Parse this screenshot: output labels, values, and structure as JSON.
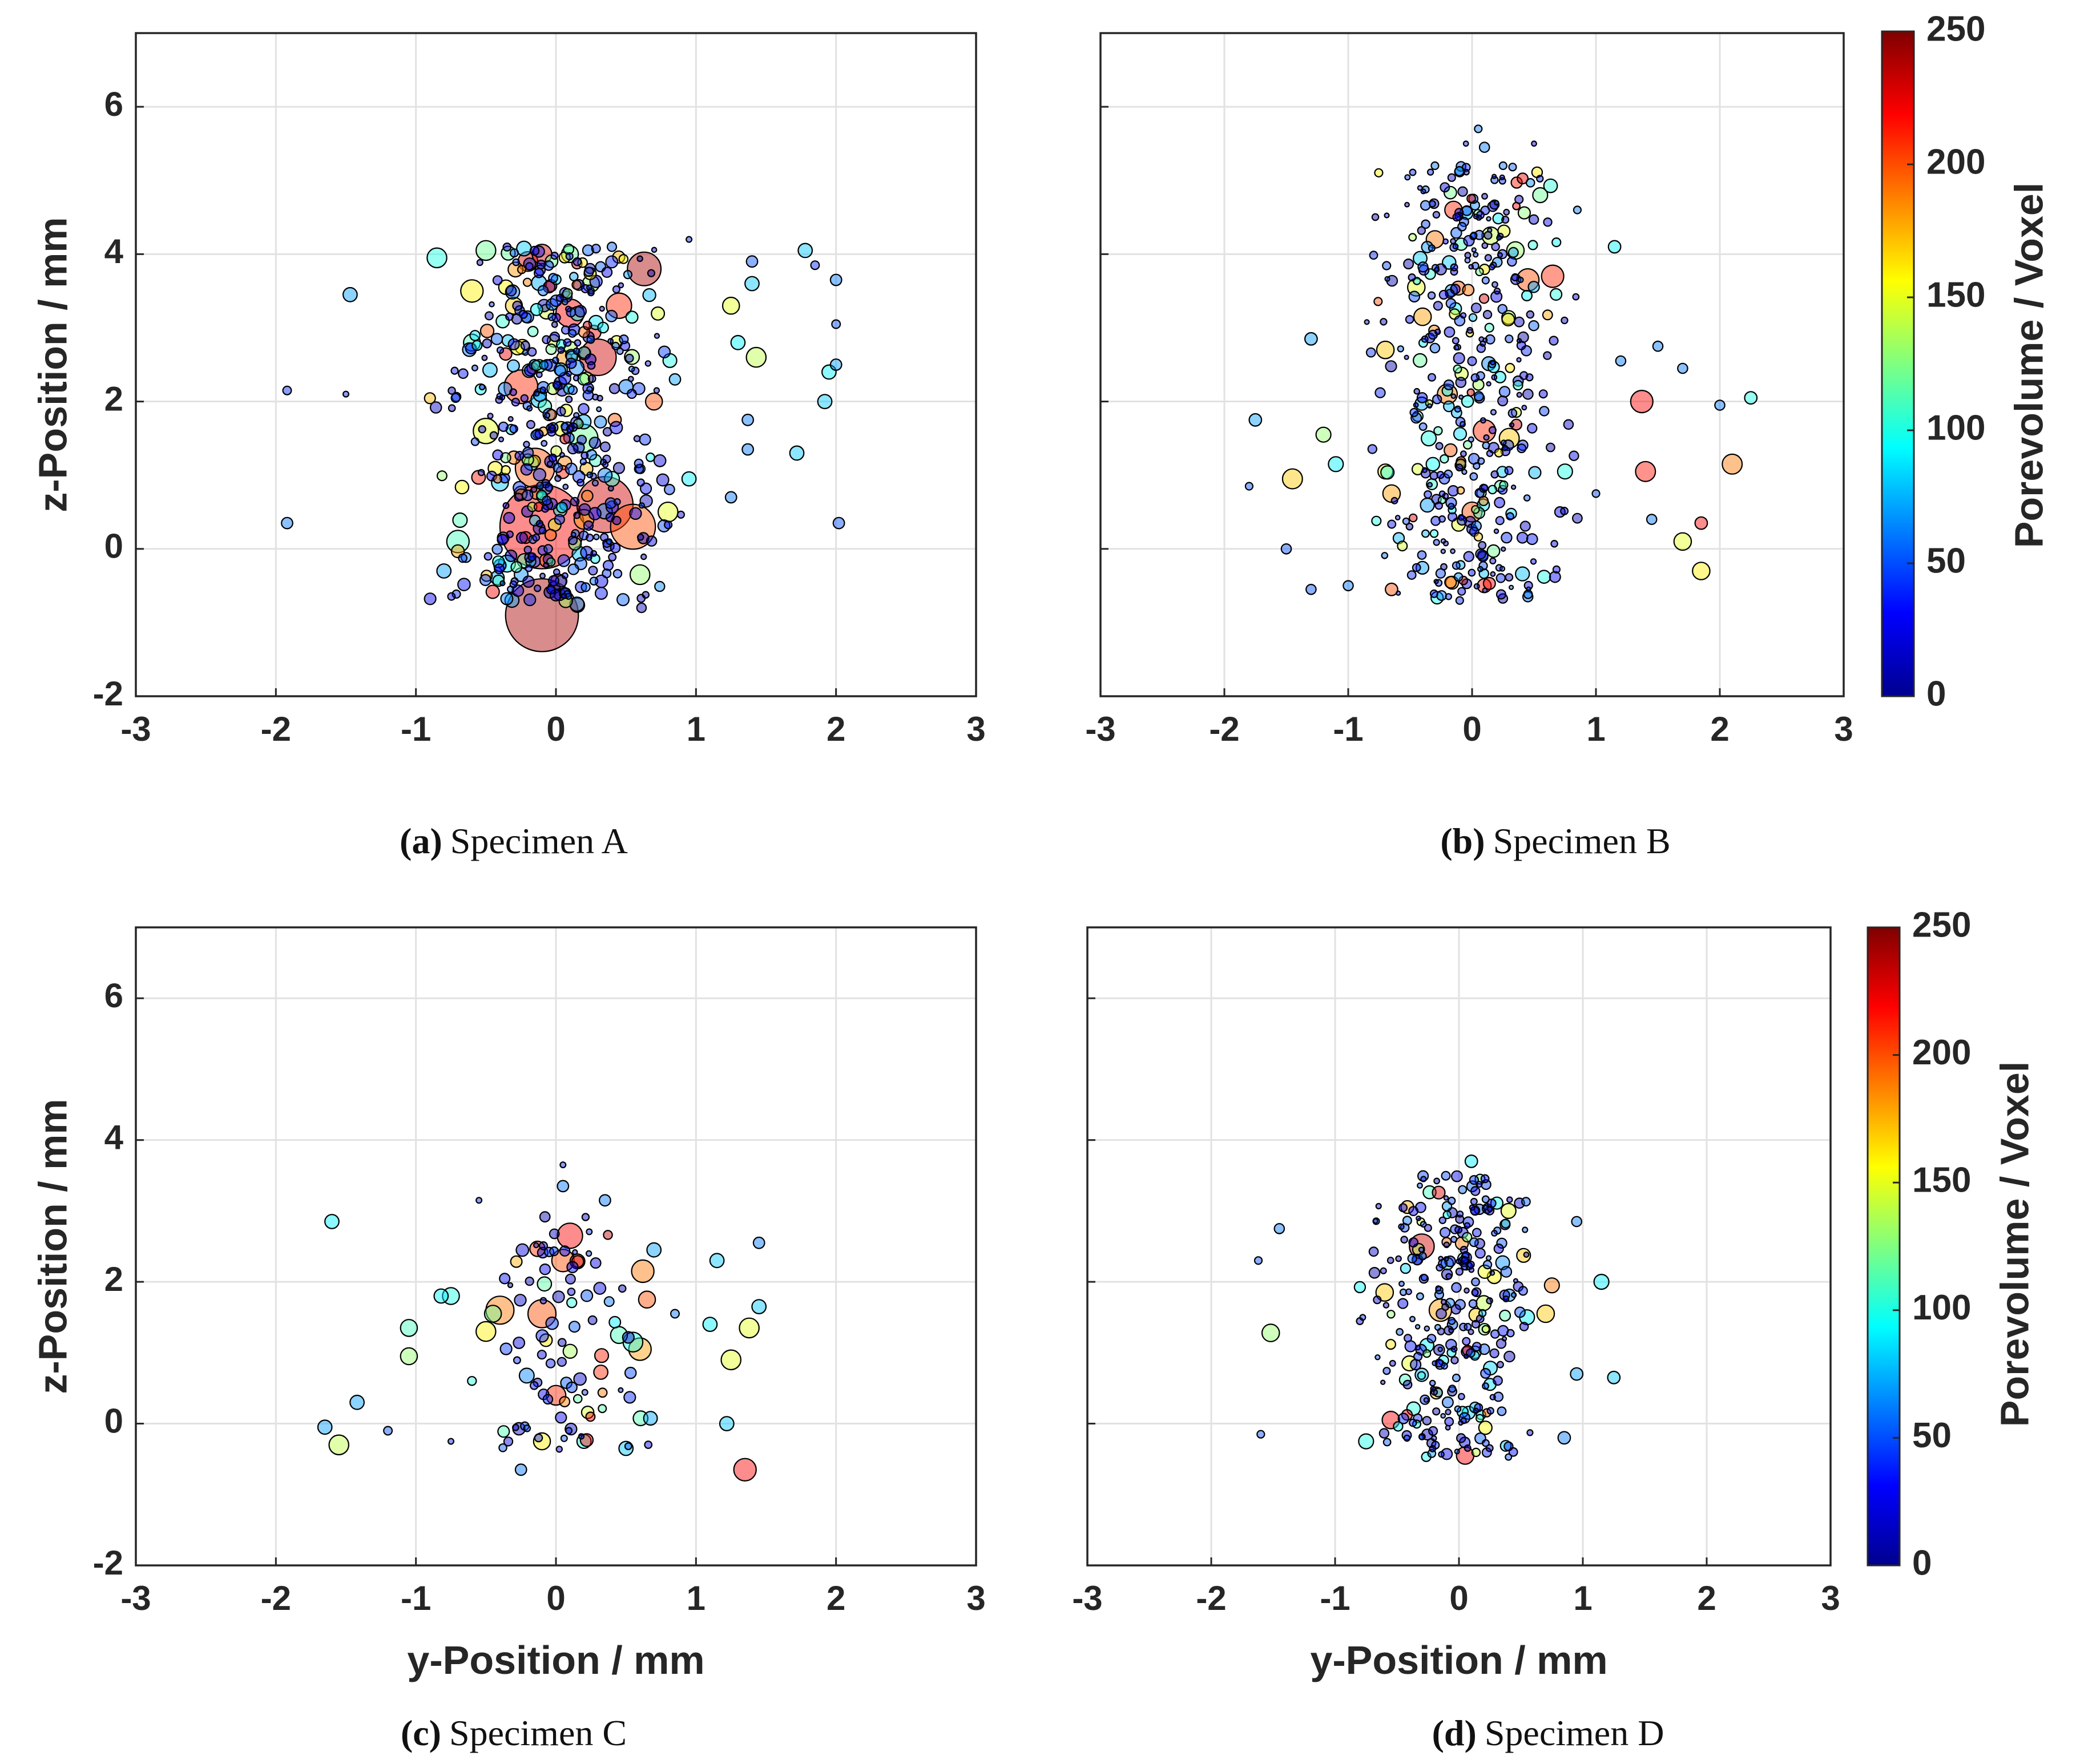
{
  "colorbar": {
    "label": "Porevolume / Voxel",
    "range": [
      0,
      250
    ],
    "ticks": [
      "0",
      "50",
      "100",
      "150",
      "200",
      "250"
    ],
    "colormap": "jet"
  },
  "chart_data": [
    {
      "type": "scatter",
      "caption_letter": "(a)",
      "caption_text": "Specimen A",
      "xlabel": "",
      "ylabel": "z-Position / mm",
      "xlim": [
        -3,
        3
      ],
      "ylim": [
        -2,
        7
      ],
      "xticks": [
        "-3",
        "-2",
        "-1",
        "0",
        "1",
        "2",
        "3"
      ],
      "yticks": [
        "-2",
        "0",
        "2",
        "4",
        "6"
      ],
      "grid": true,
      "marker_fill_opacity": 0.45,
      "points": [
        [
          0.63,
          3.8,
          240,
          12
        ],
        [
          -0.1,
          0.3,
          220,
          30
        ],
        [
          0.35,
          0.6,
          230,
          20
        ],
        [
          0.55,
          0.3,
          200,
          16
        ],
        [
          -0.1,
          -0.9,
          240,
          26
        ],
        [
          -0.15,
          1.1,
          200,
          14
        ],
        [
          0.3,
          2.6,
          230,
          13
        ],
        [
          -0.25,
          2.2,
          210,
          12
        ],
        [
          0.1,
          3.2,
          220,
          10
        ],
        [
          -0.6,
          3.5,
          160,
          8
        ],
        [
          0.45,
          3.3,
          210,
          9
        ],
        [
          -0.5,
          1.6,
          150,
          9
        ],
        [
          0.2,
          1.5,
          120,
          10
        ],
        [
          -0.2,
          3.9,
          230,
          7
        ],
        [
          1.25,
          3.3,
          150,
          6
        ],
        [
          1.43,
          2.6,
          140,
          7
        ],
        [
          1.3,
          2.8,
          90,
          5
        ],
        [
          1.4,
          3.6,
          80,
          5
        ],
        [
          1.78,
          4.05,
          80,
          5
        ],
        [
          -1.47,
          3.45,
          70,
          5
        ],
        [
          -1.92,
          2.15,
          40,
          3
        ],
        [
          -1.92,
          0.35,
          60,
          4
        ],
        [
          -1.5,
          2.1,
          40,
          2
        ],
        [
          1.72,
          1.3,
          80,
          5
        ],
        [
          1.92,
          2.0,
          80,
          5
        ],
        [
          1.95,
          2.4,
          90,
          5
        ],
        [
          2.0,
          2.5,
          70,
          4
        ],
        [
          2.0,
          3.05,
          50,
          3
        ],
        [
          2.0,
          3.65,
          60,
          4
        ],
        [
          2.02,
          0.35,
          50,
          4
        ],
        [
          1.85,
          3.85,
          40,
          3
        ],
        [
          1.37,
          1.75,
          60,
          4
        ],
        [
          1.37,
          1.35,
          60,
          4
        ],
        [
          1.25,
          0.7,
          60,
          4
        ],
        [
          1.4,
          3.9,
          50,
          4
        ],
        [
          0.95,
          4.2,
          40,
          2
        ],
        [
          0.85,
          2.3,
          70,
          4
        ],
        [
          0.95,
          0.95,
          90,
          5
        ],
        [
          -0.85,
          3.95,
          100,
          7
        ],
        [
          -0.5,
          4.05,
          120,
          7
        ],
        [
          -0.7,
          0.1,
          110,
          8
        ],
        [
          -0.8,
          -0.3,
          70,
          5
        ],
        [
          -0.35,
          -0.2,
          90,
          6
        ],
        [
          0.6,
          -0.35,
          130,
          7
        ],
        [
          0.8,
          0.5,
          150,
          7
        ],
        [
          0.7,
          2.0,
          200,
          6
        ],
        [
          -0.1,
          4.0,
          230,
          7
        ],
        [
          0.1,
          4.0,
          120,
          6
        ],
        [
          -0.4,
          0.9,
          80,
          6
        ],
        [
          0.35,
          1.0,
          60,
          5
        ],
        [
          0.15,
          -0.75,
          70,
          5
        ],
        [
          0.2,
          0.4,
          180,
          7
        ],
        [
          -0.6,
          2.8,
          110,
          6
        ],
        [
          0.5,
          2.2,
          60,
          5
        ],
        [
          -0.3,
          3.3,
          170,
          6
        ],
        [
          0.25,
          3.6,
          130,
          6
        ]
      ],
      "dense_cluster": {
        "x_range": [
          -0.9,
          0.9
        ],
        "z_range": [
          -0.8,
          4.1
        ],
        "count": 480,
        "seed": 11
      }
    },
    {
      "type": "scatter",
      "caption_letter": "(b)",
      "caption_text": "Specimen B",
      "xlabel": "",
      "ylabel": "",
      "xlim": [
        -3,
        3
      ],
      "ylim": [
        -2,
        7
      ],
      "xticks": [
        "-3",
        "-2",
        "-1",
        "0",
        "1",
        "2",
        "3"
      ],
      "yticks": [
        "-2",
        "0",
        "2",
        "4",
        "6"
      ],
      "grid": true,
      "marker_fill_opacity": 0.45,
      "points": [
        [
          1.37,
          2.0,
          220,
          9
        ],
        [
          1.4,
          1.05,
          215,
          8
        ],
        [
          2.1,
          1.15,
          190,
          8
        ],
        [
          1.85,
          0.35,
          220,
          5
        ],
        [
          1.7,
          0.1,
          150,
          7
        ],
        [
          1.85,
          -0.3,
          160,
          7
        ],
        [
          2.25,
          2.05,
          100,
          5
        ],
        [
          2.0,
          1.95,
          60,
          4
        ],
        [
          1.5,
          2.75,
          60,
          4
        ],
        [
          1.7,
          2.45,
          60,
          4
        ],
        [
          1.2,
          2.55,
          60,
          4
        ],
        [
          1.15,
          4.1,
          90,
          5
        ],
        [
          1.45,
          0.4,
          60,
          4
        ],
        [
          1.0,
          0.75,
          50,
          3
        ],
        [
          -1.45,
          0.95,
          170,
          8
        ],
        [
          -1.2,
          1.55,
          130,
          6
        ],
        [
          -1.1,
          1.15,
          90,
          6
        ],
        [
          -1.75,
          1.75,
          70,
          5
        ],
        [
          -1.3,
          2.85,
          70,
          5
        ],
        [
          -1.8,
          0.85,
          50,
          3
        ],
        [
          -1.5,
          0.0,
          50,
          4
        ],
        [
          -1.3,
          -0.55,
          50,
          4
        ],
        [
          -1.0,
          -0.5,
          60,
          4
        ],
        [
          -0.65,
          -0.55,
          200,
          5
        ],
        [
          -0.7,
          2.7,
          170,
          7
        ],
        [
          -0.65,
          0.75,
          180,
          7
        ],
        [
          -0.7,
          1.05,
          160,
          6
        ],
        [
          -0.3,
          4.2,
          190,
          7
        ],
        [
          -0.15,
          4.6,
          210,
          7
        ],
        [
          0.45,
          3.65,
          200,
          9
        ],
        [
          0.65,
          3.7,
          210,
          9
        ],
        [
          0.15,
          4.25,
          140,
          7
        ],
        [
          0.35,
          4.05,
          130,
          7
        ],
        [
          0.55,
          4.8,
          120,
          6
        ],
        [
          0.1,
          1.6,
          210,
          9
        ],
        [
          -0.2,
          2.1,
          190,
          8
        ],
        [
          0.3,
          1.5,
          170,
          8
        ],
        [
          -0.4,
          3.15,
          180,
          7
        ],
        [
          -0.45,
          3.55,
          150,
          7
        ],
        [
          0.05,
          5.7,
          60,
          3
        ],
        [
          0.1,
          5.45,
          60,
          4
        ],
        [
          -0.05,
          5.5,
          40,
          2
        ],
        [
          0.5,
          5.5,
          30,
          2
        ],
        [
          -0.3,
          5.2,
          60,
          3
        ],
        [
          0.25,
          5.2,
          60,
          3
        ],
        [
          0.85,
          4.6,
          60,
          3
        ],
        [
          0.75,
          1.05,
          100,
          6
        ],
        [
          -0.1,
          -0.7,
          40,
          3
        ],
        [
          0.45,
          -0.65,
          60,
          4
        ],
        [
          0.0,
          0.5,
          200,
          8
        ],
        [
          -0.35,
          1.5,
          100,
          6
        ]
      ],
      "dense_cluster": {
        "x_range": [
          -0.85,
          0.85
        ],
        "z_range": [
          -0.7,
          5.2
        ],
        "count": 420,
        "seed": 23
      }
    },
    {
      "type": "scatter",
      "caption_letter": "(c)",
      "caption_text": "Specimen C",
      "xlabel": "y-Position / mm",
      "ylabel": "z-Position / mm",
      "xlim": [
        -3,
        3
      ],
      "ylim": [
        -2,
        7
      ],
      "xticks": [
        "-3",
        "-2",
        "-1",
        "0",
        "1",
        "2",
        "3"
      ],
      "yticks": [
        "-2",
        "0",
        "2",
        "4",
        "6"
      ],
      "grid": true,
      "marker_fill_opacity": 0.45,
      "points": [
        [
          1.35,
          -0.65,
          220,
          8
        ],
        [
          1.25,
          0.9,
          150,
          7
        ],
        [
          1.38,
          1.35,
          150,
          7
        ],
        [
          1.45,
          1.65,
          80,
          5
        ],
        [
          1.45,
          2.55,
          60,
          4
        ],
        [
          1.15,
          2.3,
          80,
          5
        ],
        [
          1.1,
          1.4,
          90,
          5
        ],
        [
          1.22,
          0.0,
          80,
          5
        ],
        [
          0.7,
          2.45,
          70,
          5
        ],
        [
          0.62,
          2.15,
          190,
          8
        ],
        [
          0.65,
          1.75,
          200,
          6
        ],
        [
          0.6,
          1.05,
          180,
          8
        ],
        [
          0.55,
          1.15,
          100,
          7
        ],
        [
          0.5,
          -0.35,
          80,
          5
        ],
        [
          0.35,
          3.15,
          60,
          4
        ],
        [
          0.1,
          2.65,
          220,
          9
        ],
        [
          0.05,
          2.3,
          200,
          8
        ],
        [
          -0.1,
          1.55,
          200,
          10
        ],
        [
          -0.4,
          1.6,
          190,
          10
        ],
        [
          -0.5,
          1.3,
          160,
          7
        ],
        [
          -0.45,
          1.55,
          120,
          6
        ],
        [
          -0.75,
          1.8,
          100,
          6
        ],
        [
          -0.82,
          1.8,
          90,
          5
        ],
        [
          -1.05,
          1.35,
          110,
          6
        ],
        [
          -1.05,
          0.95,
          130,
          6
        ],
        [
          -1.6,
          2.85,
          90,
          5
        ],
        [
          -1.65,
          -0.05,
          70,
          5
        ],
        [
          -1.55,
          -0.3,
          140,
          7
        ],
        [
          -1.42,
          0.3,
          70,
          5
        ],
        [
          -1.2,
          -0.1,
          50,
          3
        ],
        [
          -0.75,
          -0.25,
          40,
          2
        ],
        [
          -0.25,
          -0.65,
          60,
          4
        ],
        [
          -0.1,
          -0.25,
          160,
          6
        ],
        [
          0.0,
          0.4,
          210,
          7
        ],
        [
          0.05,
          3.65,
          40,
          2
        ],
        [
          -0.55,
          3.15,
          40,
          2
        ],
        [
          0.05,
          3.35,
          60,
          4
        ],
        [
          0.85,
          1.55,
          60,
          3
        ],
        [
          0.2,
          -0.25,
          100,
          5
        ],
        [
          0.45,
          1.25,
          110,
          6
        ]
      ],
      "dense_cluster": {
        "x_range": [
          -0.6,
          0.7
        ],
        "z_range": [
          -0.4,
          3.0
        ],
        "count": 90,
        "seed": 37
      }
    },
    {
      "type": "scatter",
      "caption_letter": "(d)",
      "caption_text": "Specimen D",
      "xlabel": "y-Position / mm",
      "ylabel": "",
      "xlim": [
        -3,
        3
      ],
      "ylim": [
        -2,
        7
      ],
      "xticks": [
        "-3",
        "-2",
        "-1",
        "0",
        "1",
        "2",
        "3"
      ],
      "yticks": [
        "-2",
        "0",
        "2",
        "4",
        "6"
      ],
      "grid": true,
      "marker_fill_opacity": 0.45,
      "points": [
        [
          -1.52,
          1.28,
          130,
          7
        ],
        [
          -1.62,
          2.3,
          50,
          3
        ],
        [
          -1.45,
          2.75,
          60,
          4
        ],
        [
          -1.6,
          -0.15,
          50,
          3
        ],
        [
          1.15,
          2.0,
          90,
          6
        ],
        [
          1.25,
          0.65,
          80,
          5
        ],
        [
          0.95,
          0.7,
          70,
          5
        ],
        [
          0.95,
          2.85,
          60,
          4
        ],
        [
          0.85,
          -0.2,
          60,
          5
        ],
        [
          0.75,
          1.95,
          190,
          6
        ],
        [
          0.7,
          1.55,
          170,
          7
        ],
        [
          -0.55,
          0.05,
          220,
          7
        ],
        [
          -0.3,
          2.5,
          230,
          10
        ],
        [
          -0.15,
          1.6,
          180,
          9
        ],
        [
          0.05,
          -0.45,
          220,
          7
        ],
        [
          -0.75,
          -0.25,
          100,
          6
        ],
        [
          0.1,
          3.7,
          90,
          5
        ],
        [
          0.4,
          3.0,
          150,
          6
        ],
        [
          -0.4,
          0.85,
          150,
          6
        ],
        [
          0.2,
          1.7,
          140,
          6
        ],
        [
          -0.6,
          1.85,
          170,
          7
        ],
        [
          0.55,
          1.5,
          90,
          6
        ]
      ],
      "dense_cluster": {
        "x_range": [
          -0.8,
          0.75
        ],
        "z_range": [
          -0.5,
          3.5
        ],
        "count": 300,
        "seed": 53
      }
    }
  ]
}
